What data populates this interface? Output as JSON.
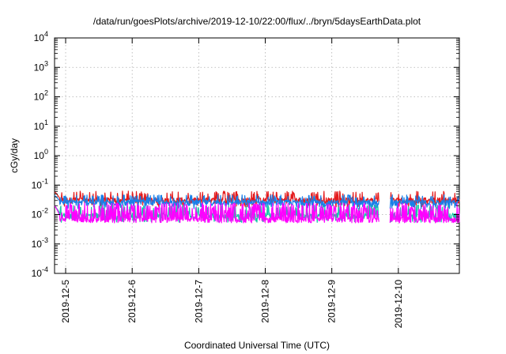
{
  "chart_data": {
    "type": "line",
    "title": "/data/run/goesPlots/archive/2019-12-10/22:00/flux/../bryn/5daysEarthData.plot",
    "xlabel": "Coordinated Universal Time (UTC)",
    "ylabel": "cGy/day",
    "yscale": "log",
    "ylim": [
      0.0001,
      10000
    ],
    "y_ticks": [
      {
        "base": "10",
        "exp": "-4"
      },
      {
        "base": "10",
        "exp": "-3"
      },
      {
        "base": "10",
        "exp": "-2"
      },
      {
        "base": "10",
        "exp": "-1"
      },
      {
        "base": "10",
        "exp": "0"
      },
      {
        "base": "10",
        "exp": "1"
      },
      {
        "base": "10",
        "exp": "2"
      },
      {
        "base": "10",
        "exp": "3"
      },
      {
        "base": "10",
        "exp": "4"
      }
    ],
    "xlim": [
      "2019-12-04 20:00",
      "2019-12-10 22:00"
    ],
    "x_ticks": [
      "2019-12-5",
      "2019-12-6",
      "2019-12-7",
      "2019-12-8",
      "2019-12-9",
      "2019-12-10"
    ],
    "grid": true,
    "data_gap": [
      "2019-12-09 17:00",
      "2019-12-09 21:00"
    ],
    "series": [
      {
        "color": "#e41a1c",
        "level_typical": 0.03,
        "level_peak": 0.06,
        "level_low": 0.02
      },
      {
        "color": "#1a7fe8",
        "level_typical": 0.025,
        "level_peak": 0.045,
        "level_low": 0.017
      },
      {
        "color": "#18c8a8",
        "level_typical": 0.009,
        "level_peak": 0.02,
        "level_low": 0.006
      },
      {
        "color": "#ff00ff",
        "level_typical": 0.0065,
        "level_peak": 0.02,
        "level_low": 0.0045
      }
    ]
  }
}
